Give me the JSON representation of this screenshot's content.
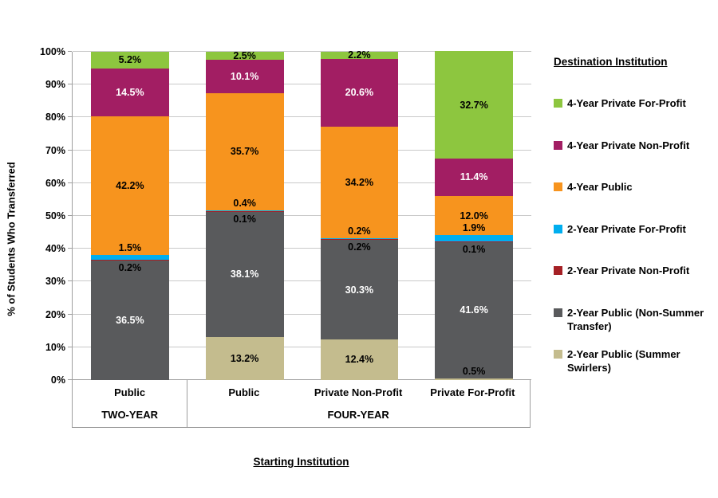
{
  "chart_data": {
    "type": "bar",
    "stacked": true,
    "percent_stacked": true,
    "y_axis_title": "% of Students Who Transferred",
    "x_axis_title": "Starting Institution",
    "legend_title": "Destination Institution",
    "legend_position": "right",
    "grid": true,
    "ylim": [
      0,
      100
    ],
    "y_ticks": [
      "0%",
      "10%",
      "20%",
      "30%",
      "40%",
      "50%",
      "60%",
      "70%",
      "80%",
      "90%",
      "100%"
    ],
    "categories": [
      {
        "label": "Public",
        "group": "TWO-YEAR"
      },
      {
        "label": "Public",
        "group": "FOUR-YEAR"
      },
      {
        "label": "Private Non-Profit",
        "group": "FOUR-YEAR"
      },
      {
        "label": "Private For-Profit",
        "group": "FOUR-YEAR"
      }
    ],
    "groups": [
      {
        "label": "TWO-YEAR",
        "span": 1
      },
      {
        "label": "FOUR-YEAR",
        "span": 3
      }
    ],
    "series": [
      {
        "name": "2-Year Public (Summer Swirlers)",
        "color": "#C4BC8E",
        "label_color": "#000000",
        "small_label_side": "above",
        "values": [
          0,
          13.2,
          12.4,
          0.5
        ]
      },
      {
        "name": "2-Year Public (Non-Summer Transfer)",
        "color": "#595A5C",
        "label_color": "#FFFFFF",
        "small_label_side": "above",
        "values": [
          36.5,
          38.1,
          30.3,
          41.6
        ]
      },
      {
        "name": "2-Year Private Non-Profit",
        "color": "#A52025",
        "label_color": "#000000",
        "small_label_side": "below",
        "values": [
          0.2,
          0.1,
          0.2,
          0.1
        ]
      },
      {
        "name": "2-Year Private For-Profit",
        "color": "#00AEEF",
        "label_color": "#000000",
        "small_label_side": "above",
        "values": [
          1.5,
          0.4,
          0.2,
          1.9
        ]
      },
      {
        "name": "4-Year Public",
        "color": "#F7941E",
        "label_color": "#000000",
        "small_label_side": "above",
        "values": [
          42.2,
          35.7,
          34.2,
          12.0
        ]
      },
      {
        "name": "4-Year Private Non-Profit",
        "color": "#A21E63",
        "label_color": "#FFFFFF",
        "small_label_side": "above",
        "values": [
          14.5,
          10.1,
          20.6,
          11.4
        ]
      },
      {
        "name": "4-Year Private For-Profit",
        "color": "#8DC63F",
        "label_color": "#000000",
        "small_label_side": "above",
        "values": [
          5.2,
          2.5,
          2.2,
          32.7
        ]
      }
    ],
    "label_format": "one_decimal_percent",
    "colors": {
      "gridline": "#C9C9C9",
      "axis": "#9E9E9E",
      "text": "#000000",
      "background": "#FFFFFF"
    }
  }
}
